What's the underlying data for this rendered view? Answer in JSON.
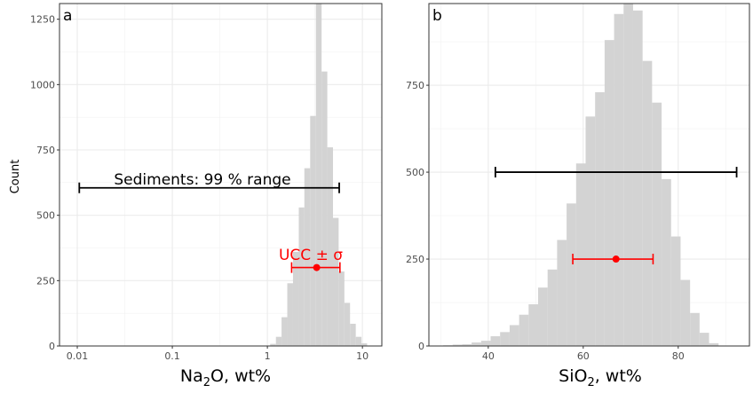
{
  "shared": {
    "ylabel": "Count"
  },
  "chart_data": [
    {
      "panel_label": "a",
      "type": "histogram",
      "x_scale": "log",
      "xlabel_main": "Na",
      "xlabel_sub": "2",
      "xlabel_tail": "O, wt%",
      "ylabel": "Count",
      "xlim": [
        0.0065,
        16
      ],
      "ylim": [
        0,
        1310
      ],
      "x_ticks": [
        {
          "value": 0.01,
          "label": "0.01"
        },
        {
          "value": 0.1,
          "label": "0.1"
        },
        {
          "value": 1,
          "label": "1"
        },
        {
          "value": 10,
          "label": "10"
        }
      ],
      "y_ticks": [
        {
          "value": 0,
          "label": "0"
        },
        {
          "value": 250,
          "label": "250"
        },
        {
          "value": 500,
          "label": "500"
        },
        {
          "value": 750,
          "label": "750"
        },
        {
          "value": 1000,
          "label": "1000"
        },
        {
          "value": 1250,
          "label": "1250"
        }
      ],
      "bins": [
        {
          "x0": 1.07,
          "x1": 1.23,
          "count": 8
        },
        {
          "x0": 1.23,
          "x1": 1.41,
          "count": 35
        },
        {
          "x0": 1.41,
          "x1": 1.62,
          "count": 110
        },
        {
          "x0": 1.62,
          "x1": 1.86,
          "count": 240
        },
        {
          "x0": 1.86,
          "x1": 2.14,
          "count": 360
        },
        {
          "x0": 2.14,
          "x1": 2.45,
          "count": 530
        },
        {
          "x0": 2.45,
          "x1": 2.82,
          "count": 680
        },
        {
          "x0": 2.82,
          "x1": 3.24,
          "count": 880
        },
        {
          "x0": 3.24,
          "x1": 3.72,
          "count": 1310
        },
        {
          "x0": 3.72,
          "x1": 4.27,
          "count": 1050
        },
        {
          "x0": 4.27,
          "x1": 4.9,
          "count": 760
        },
        {
          "x0": 4.9,
          "x1": 5.62,
          "count": 490
        },
        {
          "x0": 5.62,
          "x1": 6.46,
          "count": 285
        },
        {
          "x0": 6.46,
          "x1": 7.41,
          "count": 165
        },
        {
          "x0": 7.41,
          "x1": 8.51,
          "count": 85
        },
        {
          "x0": 8.51,
          "x1": 9.77,
          "count": 35
        },
        {
          "x0": 9.77,
          "x1": 11.2,
          "count": 10
        }
      ],
      "range_bar": {
        "label": "Sediments: 99 % range",
        "x0": 0.0105,
        "x1": 5.7,
        "y": 605,
        "color": "#000000"
      },
      "ucc": {
        "label": "UCC ± σ",
        "x": 3.3,
        "x0": 1.8,
        "x1": 5.8,
        "y": 300,
        "color": "#ff0000"
      }
    },
    {
      "panel_label": "b",
      "type": "histogram",
      "x_scale": "linear",
      "xlabel_main": "SiO",
      "xlabel_sub": "2",
      "xlabel_tail": ", wt%",
      "ylabel": "",
      "xlim": [
        27.5,
        95
      ],
      "ylim": [
        0,
        985
      ],
      "x_ticks": [
        {
          "value": 40,
          "label": "40"
        },
        {
          "value": 60,
          "label": "60"
        },
        {
          "value": 80,
          "label": "80"
        }
      ],
      "y_ticks": [
        {
          "value": 0,
          "label": "0"
        },
        {
          "value": 250,
          "label": "250"
        },
        {
          "value": 500,
          "label": "500"
        },
        {
          "value": 750,
          "label": "750"
        }
      ],
      "bins": [
        {
          "x0": 30.5,
          "x1": 32.5,
          "count": 2
        },
        {
          "x0": 32.5,
          "x1": 34.5,
          "count": 4
        },
        {
          "x0": 34.5,
          "x1": 36.5,
          "count": 5
        },
        {
          "x0": 36.5,
          "x1": 38.5,
          "count": 10
        },
        {
          "x0": 38.5,
          "x1": 40.5,
          "count": 15
        },
        {
          "x0": 40.5,
          "x1": 42.5,
          "count": 28
        },
        {
          "x0": 42.5,
          "x1": 44.5,
          "count": 40
        },
        {
          "x0": 44.5,
          "x1": 46.5,
          "count": 60
        },
        {
          "x0": 46.5,
          "x1": 48.5,
          "count": 90
        },
        {
          "x0": 48.5,
          "x1": 50.5,
          "count": 120
        },
        {
          "x0": 50.5,
          "x1": 52.5,
          "count": 168
        },
        {
          "x0": 52.5,
          "x1": 54.5,
          "count": 220
        },
        {
          "x0": 54.5,
          "x1": 56.5,
          "count": 305
        },
        {
          "x0": 56.5,
          "x1": 58.5,
          "count": 410
        },
        {
          "x0": 58.5,
          "x1": 60.5,
          "count": 525
        },
        {
          "x0": 60.5,
          "x1": 62.5,
          "count": 660
        },
        {
          "x0": 62.5,
          "x1": 64.5,
          "count": 730
        },
        {
          "x0": 64.5,
          "x1": 66.5,
          "count": 880
        },
        {
          "x0": 66.5,
          "x1": 68.5,
          "count": 955
        },
        {
          "x0": 68.5,
          "x1": 70.5,
          "count": 985
        },
        {
          "x0": 70.5,
          "x1": 72.5,
          "count": 965
        },
        {
          "x0": 72.5,
          "x1": 74.5,
          "count": 820
        },
        {
          "x0": 74.5,
          "x1": 76.5,
          "count": 700
        },
        {
          "x0": 76.5,
          "x1": 78.5,
          "count": 480
        },
        {
          "x0": 78.5,
          "x1": 80.5,
          "count": 315
        },
        {
          "x0": 80.5,
          "x1": 82.5,
          "count": 190
        },
        {
          "x0": 82.5,
          "x1": 84.5,
          "count": 95
        },
        {
          "x0": 84.5,
          "x1": 86.5,
          "count": 38
        },
        {
          "x0": 86.5,
          "x1": 88.5,
          "count": 8
        }
      ],
      "range_bar": {
        "label": "",
        "x0": 41.5,
        "x1": 92.3,
        "y": 500,
        "color": "#000000"
      },
      "ucc": {
        "label": "",
        "x": 66.9,
        "x0": 57.8,
        "x1": 74.7,
        "y": 250,
        "color": "#ff0000"
      }
    }
  ]
}
